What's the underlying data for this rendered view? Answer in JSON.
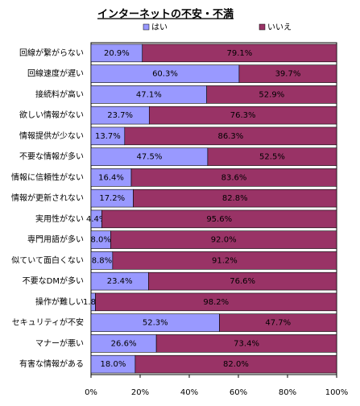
{
  "chart_data": {
    "type": "stacked_barh",
    "title": "インターネットの不安・不満",
    "categories": [
      "回線が繋がらない",
      "回線速度が遅い",
      "接続料が高い",
      "欲しい情報がない",
      "情報提供が少ない",
      "不要な情報が多い",
      "情報に信頼性がない",
      "情報が更新されない",
      "実用性がない",
      "専門用語が多い",
      "似ていて面白くない",
      "不要なDMが多い",
      "操作が難しい",
      "セキュリティが不安",
      "マナーが悪い",
      "有害な情報がある"
    ],
    "series": [
      {
        "name": "はい",
        "color": "#9999ff",
        "values": [
          20.9,
          60.3,
          47.1,
          23.7,
          13.7,
          47.5,
          16.4,
          17.2,
          4.4,
          8.0,
          8.8,
          23.4,
          1.8,
          52.3,
          26.6,
          18.0
        ],
        "value_labels": [
          "20.9%",
          "60.3%",
          "47.1%",
          "23.7%",
          "13.7%",
          "47.5%",
          "16.4%",
          "17.2%",
          "4.4%",
          "8.0%",
          "8.8%",
          "23.4%",
          "1.8%",
          "52.3%",
          "26.6%",
          "18.0%"
        ]
      },
      {
        "name": "いいえ",
        "color": "#993366",
        "values": [
          79.1,
          39.7,
          52.9,
          76.3,
          86.3,
          52.5,
          83.6,
          82.8,
          95.6,
          92.0,
          91.2,
          76.6,
          98.2,
          47.7,
          73.4,
          82.0
        ],
        "value_labels": [
          "79.1%",
          "39.7%",
          "52.9%",
          "76.3%",
          "86.3%",
          "52.5%",
          "83.6%",
          "82.8%",
          "95.6%",
          "92.0%",
          "91.2%",
          "76.6%",
          "98.2%",
          "47.7%",
          "73.4%",
          "82.0%"
        ]
      }
    ],
    "xlim": [
      0,
      100
    ],
    "xticks": [
      {
        "value": 0,
        "label": "0%"
      },
      {
        "value": 20,
        "label": "20%"
      },
      {
        "value": 40,
        "label": "40%"
      },
      {
        "value": 60,
        "label": "60%"
      },
      {
        "value": 80,
        "label": "80%"
      },
      {
        "value": 100,
        "label": "100%"
      }
    ]
  }
}
